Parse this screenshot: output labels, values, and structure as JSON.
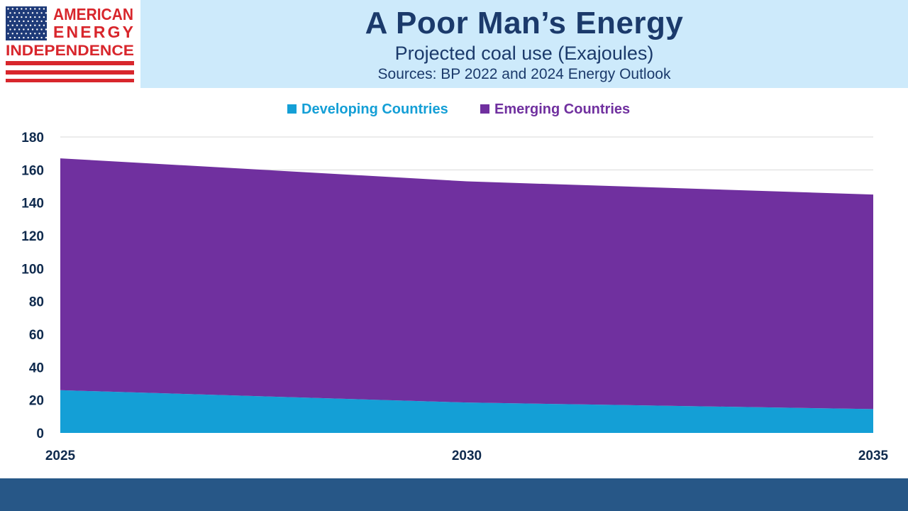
{
  "logo": {
    "lines": [
      "AMERICAN",
      "ENERGY",
      "INDEPENDENCE"
    ],
    "colors": {
      "red": "#d8262c",
      "blue": "#1e3a78",
      "stars": "#ffffff"
    }
  },
  "header": {
    "title": "A Poor Man’s Energy",
    "subtitle": "Projected coal use (Exajoules)",
    "sources": "Sources: BP 2022 and 2024 Energy Outlook",
    "background": "#cdeafb"
  },
  "footer": {
    "color": "#275787"
  },
  "chart_data": {
    "type": "area",
    "stacked": true,
    "x": [
      2025,
      2030,
      2035
    ],
    "x_tick_labels": [
      "2025",
      "2030",
      "2035"
    ],
    "series": [
      {
        "name": "Developing Countries",
        "color": "#149fd6",
        "values": [
          26,
          18.5,
          14.5
        ]
      },
      {
        "name": "Emerging Countries",
        "color": "#70309f",
        "values": [
          141,
          134.5,
          130.5
        ]
      }
    ],
    "ylim": [
      0,
      180
    ],
    "y_ticks": [
      0,
      20,
      40,
      60,
      80,
      100,
      120,
      140,
      160,
      180
    ],
    "grid": true,
    "legend_position": "top-center"
  }
}
